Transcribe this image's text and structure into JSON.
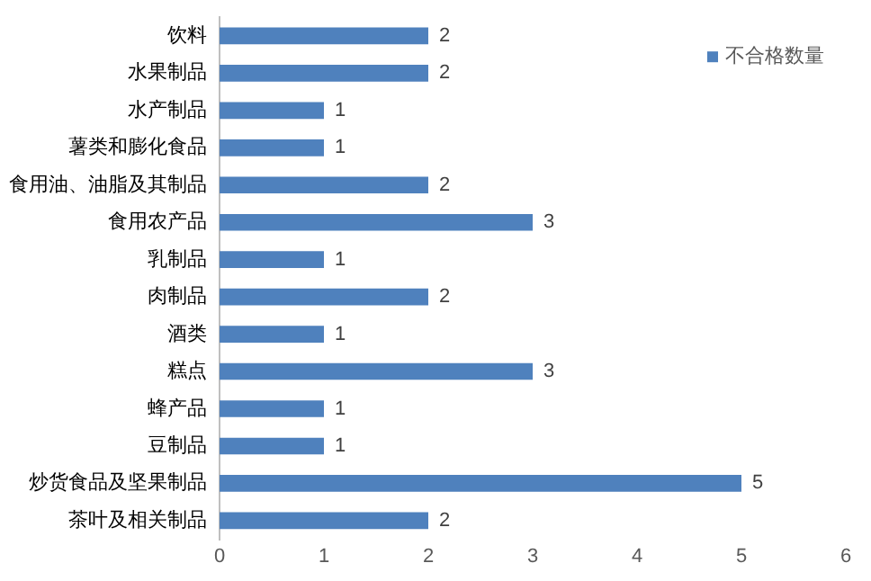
{
  "chart_data": {
    "type": "bar",
    "orientation": "horizontal",
    "categories": [
      "饮料",
      "水果制品",
      "水产制品",
      "薯类和膨化食品",
      "食用油、油脂及其制品",
      "食用农产品",
      "乳制品",
      "肉制品",
      "酒类",
      "糕点",
      "蜂产品",
      "豆制品",
      "炒货食品及坚果制品",
      "茶叶及相关制品"
    ],
    "series": [
      {
        "name": "不合格数量",
        "color": "#4f81bd",
        "values": [
          2,
          2,
          1,
          1,
          2,
          3,
          1,
          2,
          1,
          3,
          1,
          1,
          5,
          2
        ]
      }
    ],
    "xlim": [
      0,
      6
    ],
    "xticks": [
      0,
      1,
      2,
      3,
      4,
      5,
      6
    ],
    "grid": false,
    "legend": "top right",
    "data_labels": true
  }
}
